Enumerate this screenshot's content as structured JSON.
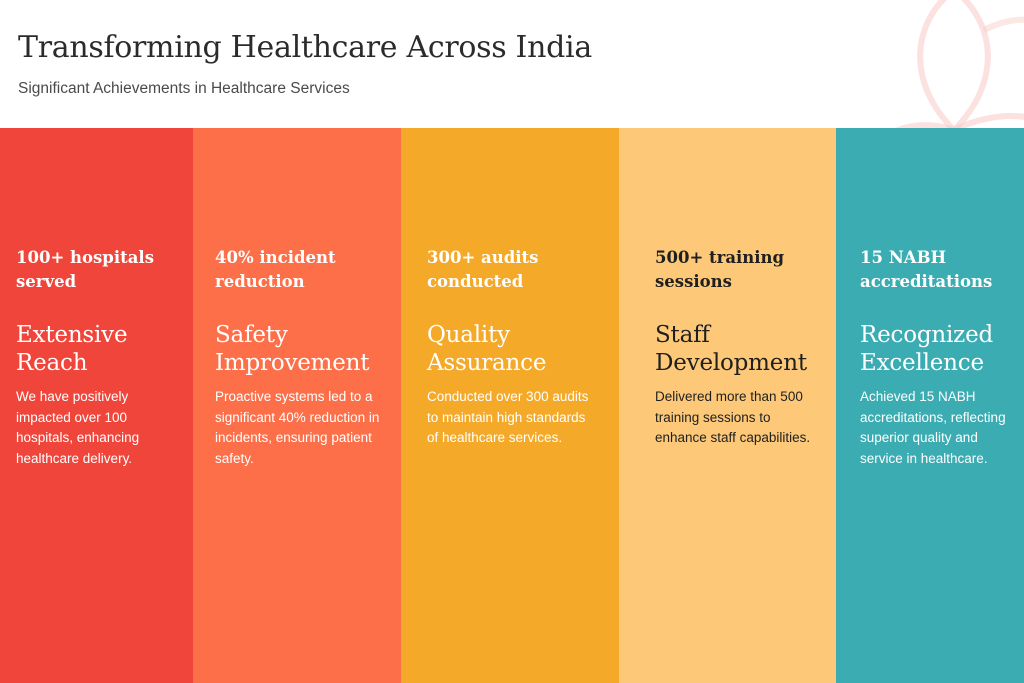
{
  "header": {
    "title": "Transforming Healthcare Across India",
    "subtitle": "Significant Achievements in Healthcare Services"
  },
  "colors": {
    "accent_red": "#f0453a",
    "accent_orange": "#fd6f48",
    "accent_amber": "#f5a928",
    "accent_light_amber": "#fdc978",
    "accent_teal": "#3aacb2",
    "decor_leaf": "#f7c9c4"
  },
  "columns": [
    {
      "stat": "100+ hospitals\nserved",
      "heading": "Extensive\nReach",
      "description": "We have positively\nimpacted over 100\nhospitals, enhancing\nhealthcare delivery."
    },
    {
      "stat": "40% incident\nreduction",
      "heading": "Safety\nImprovement",
      "description": "Proactive systems led to a\nsignificant 40% reduction in\nincidents, ensuring patient\nsafety."
    },
    {
      "stat": "300+ audits\nconducted",
      "heading": "Quality\nAssurance",
      "description": "Conducted over 300 audits\nto maintain high standards\nof healthcare services."
    },
    {
      "stat": "500+ training\nsessions",
      "heading": "Staff\nDevelopment",
      "description": "Delivered more than 500\ntraining sessions to\nenhance staff capabilities."
    },
    {
      "stat": "15 NABH\naccreditations",
      "heading": "Recognized\nExcellence",
      "description": "Achieved 15 NABH\naccreditations, reflecting\nsuperior quality and\nservice in healthcare."
    }
  ]
}
